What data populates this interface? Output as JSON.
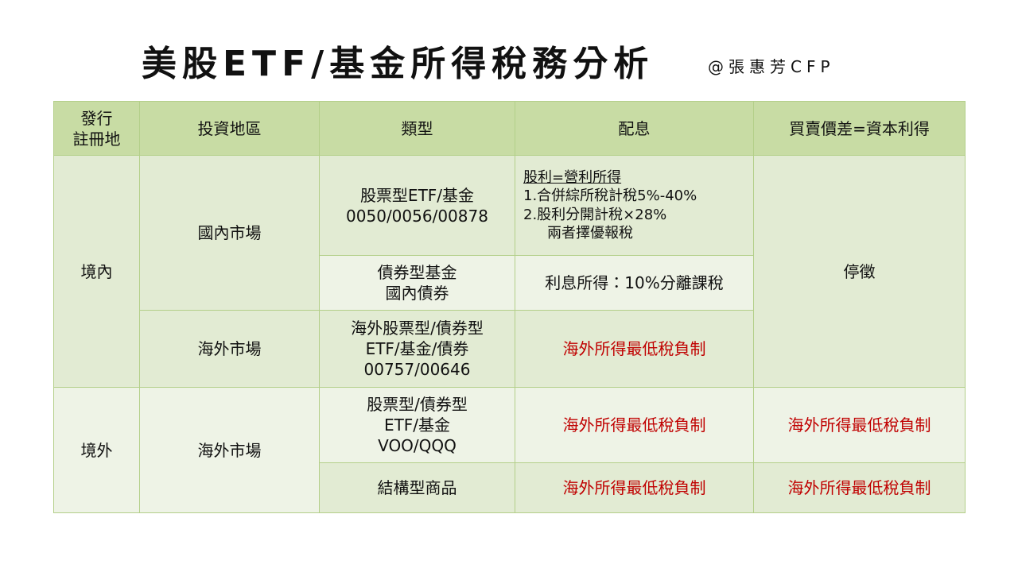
{
  "header": {
    "title": "美股ETF/基金所得稅務分析",
    "author": "@張惠芳CFP"
  },
  "table": {
    "headers": [
      [
        "發行",
        "註冊地"
      ],
      [
        "投資地區"
      ],
      [
        "類型"
      ],
      [
        "配息"
      ],
      [
        "買賣價差=資本利得"
      ]
    ],
    "rows": [
      [
        [
          "境內"
        ],
        [
          "國內市場"
        ],
        [
          "股票型ETF/基金",
          "0050/0056/00878"
        ],
        [
          "股利=營利所得",
          "1.合併綜所稅計稅5%-40%",
          "2.股利分開計稅×28%",
          "兩者擇優報稅"
        ],
        [
          "停徵"
        ]
      ],
      [
        [
          "債券型基金",
          "國內債券"
        ],
        [
          "利息所得：10%分離課稅"
        ]
      ],
      [
        [
          "海外市場"
        ],
        [
          "海外股票型/債券型",
          "ETF/基金/債券",
          "00757/00646"
        ],
        [
          "海外所得最低稅負制"
        ]
      ],
      [
        [
          "境外"
        ],
        [
          "海外市場"
        ],
        [
          "股票型/債券型",
          "ETF/基金",
          "VOO/QQQ"
        ],
        [
          "海外所得最低稅負制"
        ],
        [
          "海外所得最低稅負制"
        ]
      ],
      [
        [
          "結構型商品"
        ],
        [
          "海外所得最低稅負制"
        ],
        [
          "海外所得最低稅負制"
        ]
      ]
    ]
  }
}
